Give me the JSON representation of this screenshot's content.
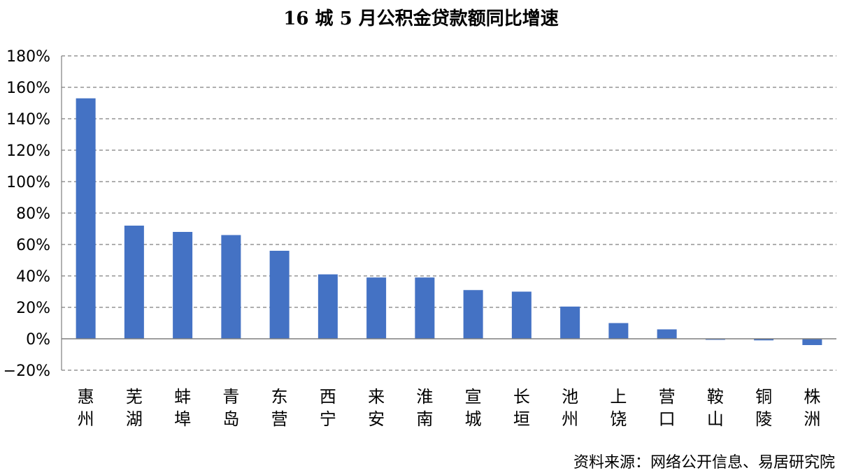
{
  "chart_data": {
    "type": "bar",
    "title": "16 城 5 月公积金贷款额同比增速",
    "categories": [
      "惠州",
      "芜湖",
      "蚌埠",
      "青岛",
      "东营",
      "西宁",
      "来安",
      "淮南",
      "宣城",
      "长垣",
      "池州",
      "上饶",
      "营口",
      "鞍山",
      "铜陵",
      "株洲"
    ],
    "values": [
      153,
      72,
      68,
      66,
      56,
      41,
      39,
      39,
      31,
      30,
      20.5,
      10,
      6,
      -0.5,
      -1,
      -4
    ],
    "unit": "%",
    "ylim": [
      -20,
      180
    ],
    "yticks": [
      "180%",
      "160%",
      "140%",
      "120%",
      "100%",
      "80%",
      "60%",
      "40%",
      "20%",
      "0%",
      "−20%"
    ],
    "ytick_values": [
      180,
      160,
      140,
      120,
      100,
      80,
      60,
      40,
      20,
      0,
      -20
    ],
    "grid": true,
    "bar_color": "#4472C4",
    "source": "资料来源：网络公开信息、易居研究院"
  }
}
